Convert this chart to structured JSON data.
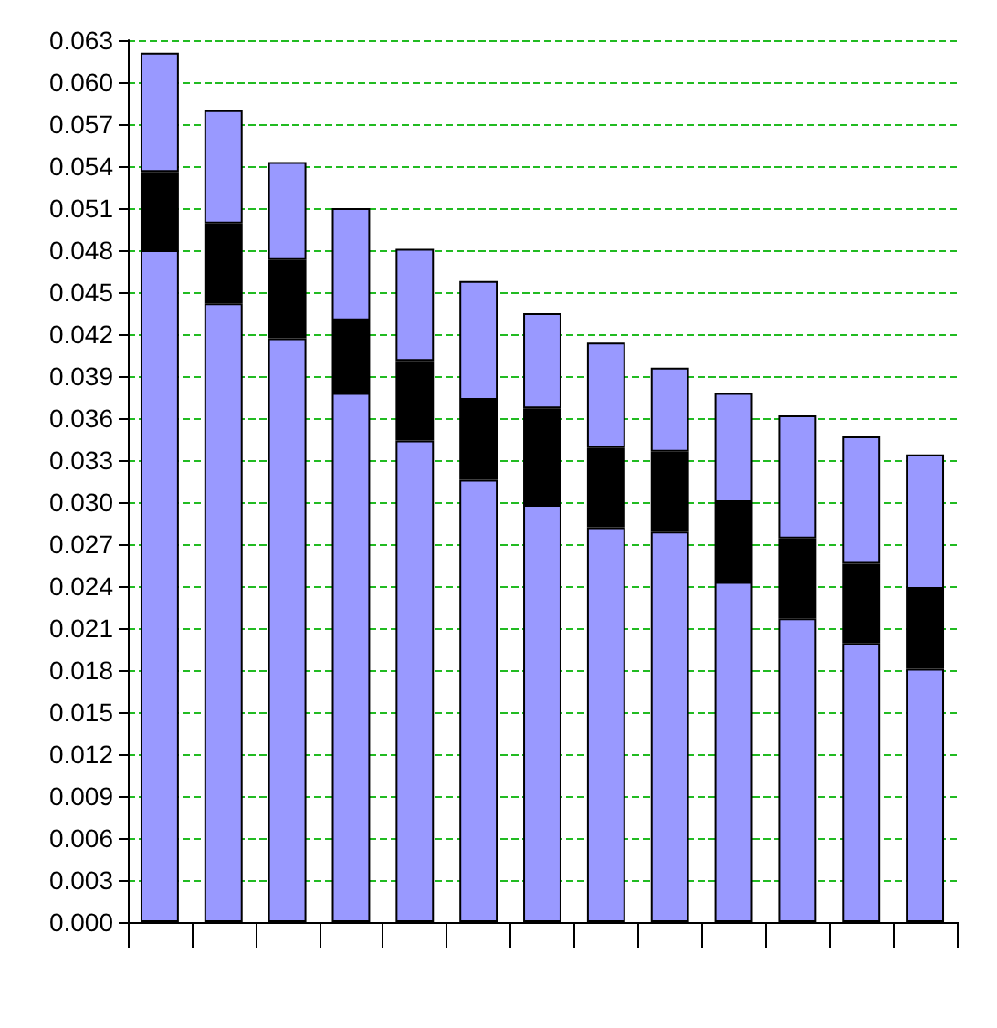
{
  "chart_data": {
    "type": "bar",
    "stacked": true,
    "categories": [
      null,
      null,
      null,
      null,
      null,
      null,
      null,
      null,
      null,
      null,
      null,
      null,
      null
    ],
    "series": [
      {
        "color": "#9999ff",
        "values": [
          0.048,
          0.0442,
          0.0417,
          0.0378,
          0.0344,
          0.0316,
          0.0298,
          0.0282,
          0.0279,
          0.0243,
          0.0217,
          0.0199,
          0.0181
        ]
      },
      {
        "color": "#000000",
        "values": [
          0.0056,
          0.0057,
          0.0056,
          0.0052,
          0.0057,
          0.0057,
          0.0069,
          0.0057,
          0.0057,
          0.0057,
          0.0057,
          0.0057,
          0.0057
        ]
      },
      {
        "color": "#9999ff",
        "values": [
          0.0085,
          0.0081,
          0.007,
          0.008,
          0.008,
          0.0085,
          0.0068,
          0.0075,
          0.006,
          0.0078,
          0.0088,
          0.0091,
          0.0096
        ]
      }
    ],
    "ylim": [
      0,
      0.063
    ],
    "yticks": [
      {
        "value": 0,
        "label": "0.000"
      },
      {
        "value": 0.003,
        "label": "0.003"
      },
      {
        "value": 0.006,
        "label": "0.006"
      },
      {
        "value": 0.009,
        "label": "0.009"
      },
      {
        "value": 0.012,
        "label": "0.012"
      },
      {
        "value": 0.015,
        "label": "0.015"
      },
      {
        "value": 0.018,
        "label": "0.018"
      },
      {
        "value": 0.021,
        "label": "0.021"
      },
      {
        "value": 0.024,
        "label": "0.024"
      },
      {
        "value": 0.027,
        "label": "0.027"
      },
      {
        "value": 0.03,
        "label": "0.030"
      },
      {
        "value": 0.033,
        "label": "0.033"
      },
      {
        "value": 0.036,
        "label": "0.036"
      },
      {
        "value": 0.039,
        "label": "0.039"
      },
      {
        "value": 0.042,
        "label": "0.042"
      },
      {
        "value": 0.045,
        "label": "0.045"
      },
      {
        "value": 0.048,
        "label": "0.048"
      },
      {
        "value": 0.051,
        "label": "0.051"
      },
      {
        "value": 0.054,
        "label": "0.054"
      },
      {
        "value": 0.057,
        "label": "0.057"
      },
      {
        "value": 0.06,
        "label": "0.060"
      },
      {
        "value": 0.063,
        "label": "0.063"
      }
    ],
    "grid": "y"
  }
}
